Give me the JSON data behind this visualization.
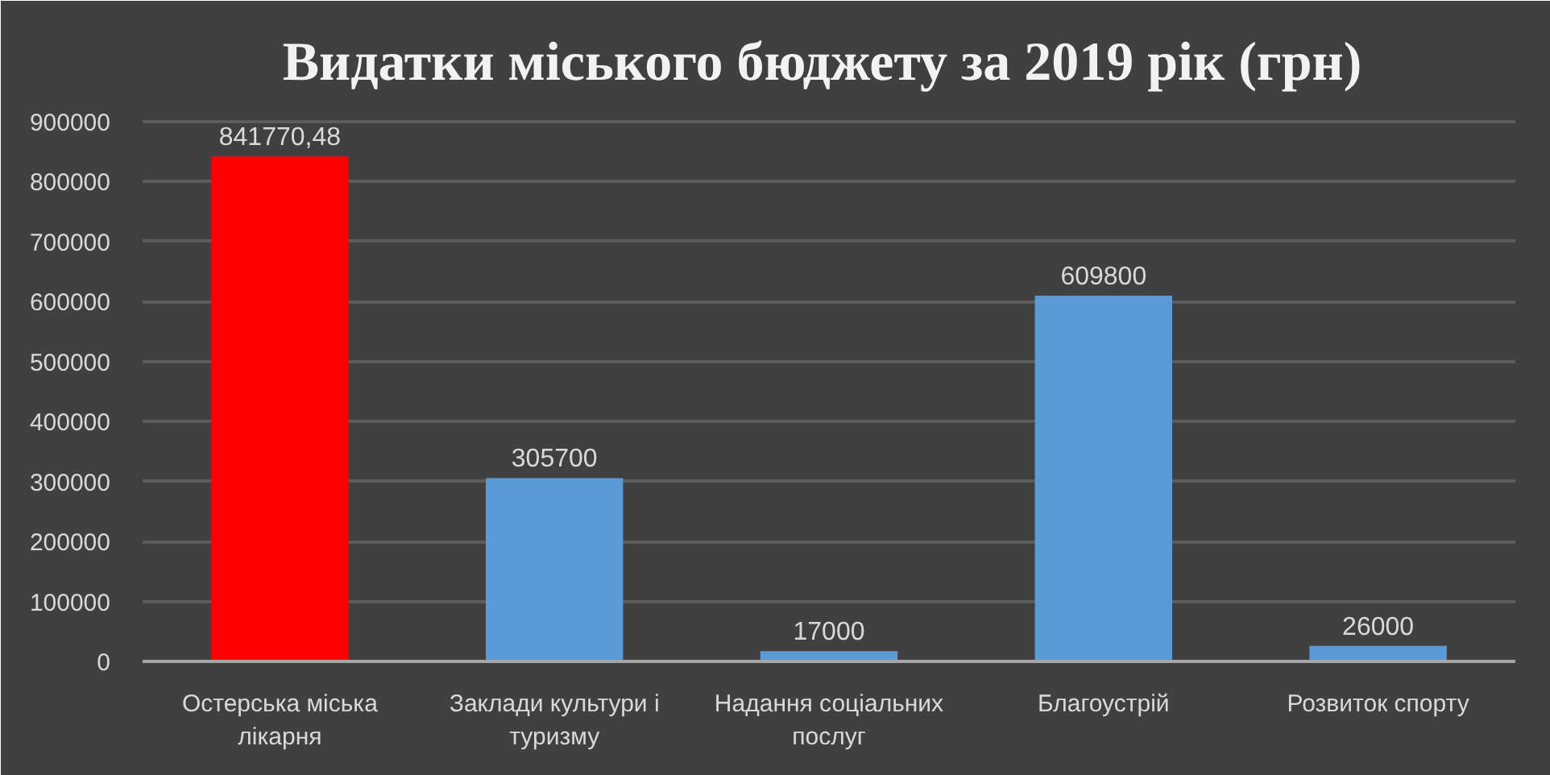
{
  "chart_data": {
    "type": "bar",
    "title": "Видатки міського бюджету  за 2019 рік (грн)",
    "categories": [
      "Остерська міська лікарня",
      "Заклади культури і туризму",
      "Надання соціальних послуг",
      "Благоустрій",
      "Розвиток спорту"
    ],
    "values": [
      841770.48,
      305700,
      17000,
      609800,
      26000
    ],
    "colors": [
      "#ff0000",
      "#5b9bd5",
      "#5b9bd5",
      "#5b9bd5",
      "#5b9bd5"
    ],
    "value_labels": [
      "841770,48",
      "305700",
      "17000",
      "609800",
      "26000"
    ],
    "ylim": [
      0,
      900000
    ],
    "yticks": [
      0,
      100000,
      200000,
      300000,
      400000,
      500000,
      600000,
      700000,
      800000,
      900000
    ],
    "grid": "y"
  }
}
